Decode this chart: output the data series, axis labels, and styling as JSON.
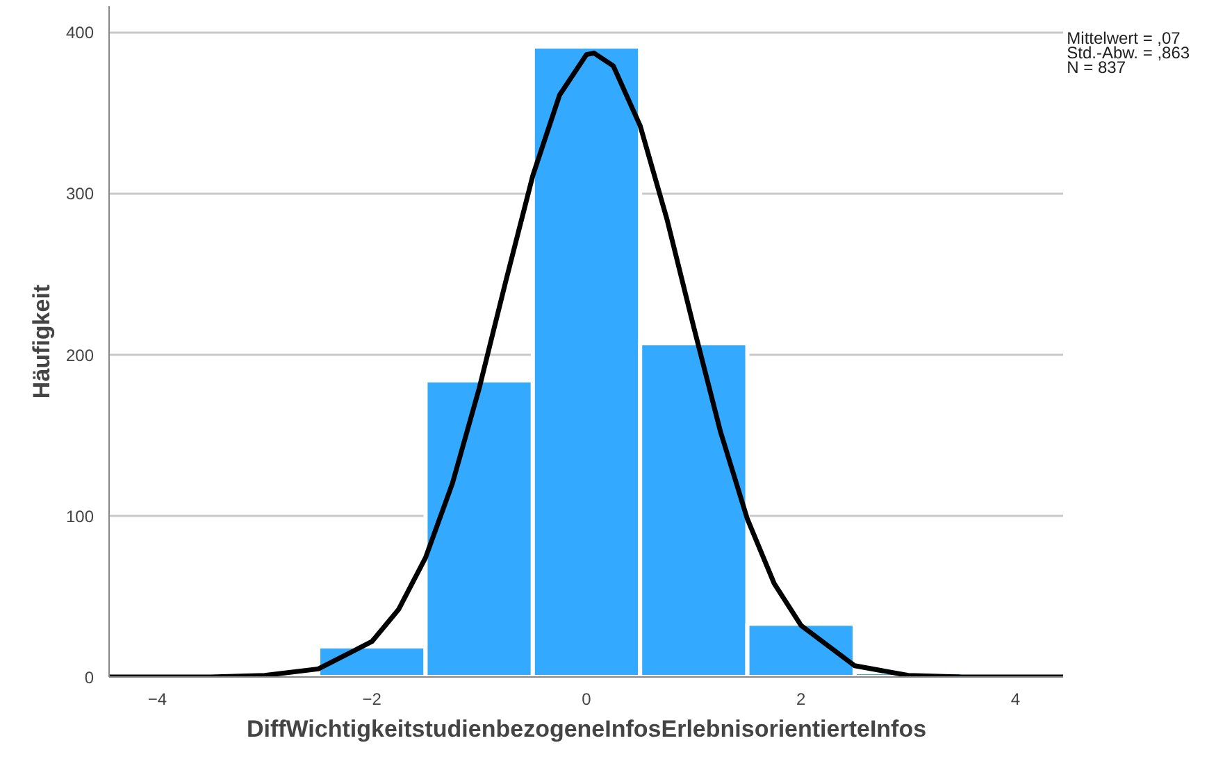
{
  "chart_data": {
    "type": "histogram",
    "xlabel": "DiffWichtigkeitstudienbezogeneInfosErlebnisorientierteInfos",
    "ylabel": "Häufigkeit",
    "bins": [
      -2.5,
      -1.5,
      -0.5,
      0.5,
      1.5,
      2.5,
      3.5
    ],
    "values": [
      19,
      184,
      391,
      207,
      33,
      3
    ],
    "color": "#33aaff",
    "series": [
      {
        "type": "line",
        "color": "#000000",
        "x": [
          -4.45,
          -3.5,
          -3.0,
          -2.5,
          -2.0,
          -1.75,
          -1.5,
          -1.25,
          -1.0,
          -0.75,
          -0.5,
          -0.25,
          0.0,
          0.07,
          0.25,
          0.5,
          0.75,
          1.0,
          1.25,
          1.5,
          1.75,
          2.0,
          2.5,
          3.0,
          3.5,
          4.45
        ],
        "values": [
          0,
          0,
          1,
          5,
          22,
          42,
          74,
          120,
          179,
          246,
          311,
          361,
          386,
          387,
          379,
          342,
          284,
          217,
          152,
          98,
          58,
          32,
          7,
          1,
          0,
          0
        ]
      }
    ],
    "xlim": [
      -4.45,
      4.45
    ],
    "ylim": [
      0,
      416
    ],
    "xticks": [
      -4,
      -2,
      0,
      2,
      4
    ],
    "yticks": [
      0,
      100,
      200,
      300,
      400
    ],
    "grid": "y",
    "annotations": [
      "Mittelwert = ,07",
      "Std.-Abw. = ,863",
      "N = 837"
    ]
  }
}
